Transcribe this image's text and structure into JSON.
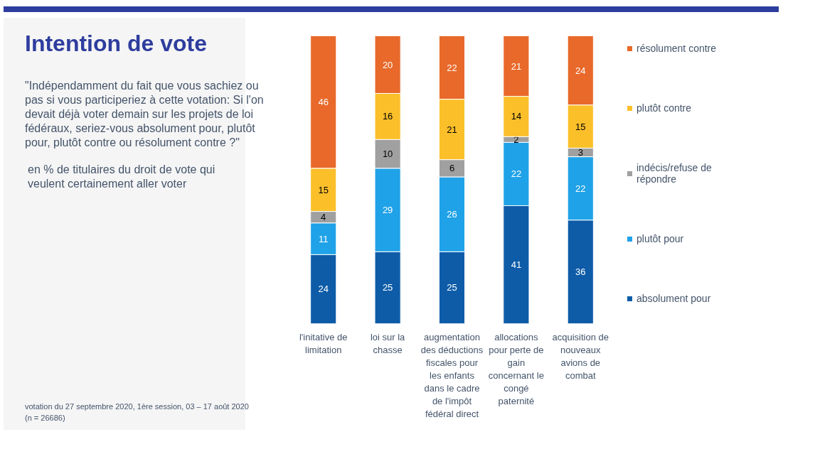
{
  "chart_data": {
    "type": "bar",
    "stacked": true,
    "title": "Intention de vote",
    "subtitle": "\"Indépendamment du fait que vous sachiez ou pas si vous participeriez à cette votation: Si l'on devait déjà voter demain sur les projets de loi fédéraux, seriez-vous absolument pour, plutôt pour, plutôt contre ou résolument contre ?\"",
    "annotations": [
      "en % de titulaires du droit de vote qui veulent certainement aller voter",
      "votation du 27 septembre 2020, 1ère session, 03 – 17 août 2020 (n = 26686)"
    ],
    "categories": [
      "l'initative de limitation",
      "loi sur la chasse",
      "augmentation des déductions fiscales pour les enfants dans le cadre de l'impôt fédéral direct",
      "allocations pour perte de gain concernant le congé paternité",
      "acquisition de nouveaux avions de combat"
    ],
    "ylim": [
      0,
      100
    ],
    "tick_labels": "x",
    "data_labels": true,
    "legend": "right",
    "grid": false,
    "series": [
      {
        "name": "absolument pour",
        "color": "#0e5ca8",
        "values": [
          24,
          25,
          25,
          41,
          36
        ]
      },
      {
        "name": "plutôt pour",
        "color": "#1fa2e8",
        "values": [
          11,
          29,
          26,
          22,
          22
        ]
      },
      {
        "name": "indécis/refuse de répondre",
        "color": "#a0a0a0",
        "values": [
          4,
          10,
          6,
          2,
          3
        ]
      },
      {
        "name": "plutôt contre",
        "color": "#fbbf2a",
        "values": [
          15,
          16,
          21,
          14,
          15
        ]
      },
      {
        "name": "résolument contre",
        "color": "#e8692a",
        "values": [
          46,
          20,
          22,
          21,
          24
        ]
      }
    ]
  }
}
